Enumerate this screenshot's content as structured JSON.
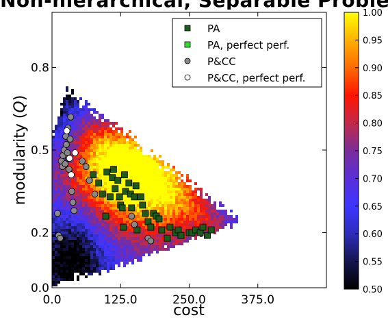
{
  "chart_data": {
    "type": "scatter",
    "title": "Non-hierarchical, Separable Problems",
    "xlabel": "cost",
    "ylabel": "modularity (Q)",
    "xlim": [
      0,
      500
    ],
    "ylim": [
      0,
      1.0
    ],
    "xticks": [
      "0.0",
      "125.0",
      "250.0",
      "375.0"
    ],
    "xtick_values": [
      0,
      125,
      250,
      375
    ],
    "yticks": [
      "0.0",
      "0.2",
      "0.5",
      "0.8"
    ],
    "ytick_values": [
      0.0,
      0.2,
      0.5,
      0.8
    ],
    "grid": false,
    "legend_position": "top-right",
    "colorbar": {
      "range": [
        0.5,
        1.0
      ],
      "ticks": [
        "0.50",
        "0.55",
        "0.60",
        "0.65",
        "0.70",
        "0.75",
        "0.80",
        "0.85",
        "0.90",
        "0.95",
        "1.00"
      ],
      "colors": [
        "#000000",
        "#15154d",
        "#2d2db8",
        "#3d35ff",
        "#5a2fd8",
        "#7a2d9a",
        "#c02a4a",
        "#ff1500",
        "#ff6a00",
        "#ffb000",
        "#ffff00"
      ]
    },
    "background_heatmap": "density of evolved networks over cost and modularity (perfect-performance fraction), values 0.50-1.00",
    "series": [
      {
        "name": "PA",
        "marker": "square",
        "color": "#1e5a1e",
        "points": [
          [
            75,
            0.41
          ],
          [
            85,
            0.38
          ],
          [
            92,
            0.34
          ],
          [
            98,
            0.26
          ],
          [
            100,
            0.42
          ],
          [
            106,
            0.33
          ],
          [
            110,
            0.4
          ],
          [
            112,
            0.43
          ],
          [
            115,
            0.36
          ],
          [
            120,
            0.39
          ],
          [
            123,
            0.33
          ],
          [
            125,
            0.3
          ],
          [
            128,
            0.29
          ],
          [
            130,
            0.22
          ],
          [
            132,
            0.41
          ],
          [
            134,
            0.35
          ],
          [
            140,
            0.38
          ],
          [
            143,
            0.34
          ],
          [
            145,
            0.29
          ],
          [
            150,
            0.33
          ],
          [
            153,
            0.37
          ],
          [
            155,
            0.21
          ],
          [
            162,
            0.33
          ],
          [
            165,
            0.3
          ],
          [
            170,
            0.27
          ],
          [
            175,
            0.24
          ],
          [
            180,
            0.22
          ],
          [
            185,
            0.27
          ],
          [
            190,
            0.26
          ],
          [
            195,
            0.25
          ],
          [
            200,
            0.21
          ],
          [
            210,
            0.18
          ],
          [
            215,
            0.22
          ],
          [
            225,
            0.2
          ],
          [
            230,
            0.21
          ],
          [
            235,
            0.19
          ],
          [
            250,
            0.2
          ],
          [
            255,
            0.2
          ],
          [
            262,
            0.21
          ],
          [
            270,
            0.2
          ],
          [
            275,
            0.22
          ],
          [
            283,
            0.19
          ],
          [
            290,
            0.21
          ]
        ]
      },
      {
        "name": "PA, perfect perf.",
        "marker": "square",
        "color": "#33dd33",
        "points": []
      },
      {
        "name": "P&CC",
        "marker": "circle",
        "color": "#888888",
        "points": [
          [
            10,
            0.27
          ],
          [
            12,
            0.19
          ],
          [
            15,
            0.18
          ],
          [
            17,
            0.46
          ],
          [
            19,
            0.44
          ],
          [
            20,
            0.48
          ],
          [
            22,
            0.5
          ],
          [
            24,
            0.45
          ],
          [
            25,
            0.55
          ],
          [
            26,
            0.52
          ],
          [
            28,
            0.49
          ],
          [
            29,
            0.58
          ],
          [
            30,
            0.47
          ],
          [
            31,
            0.43
          ],
          [
            33,
            0.54
          ],
          [
            34,
            0.62
          ],
          [
            36,
            0.35
          ],
          [
            38,
            0.31
          ],
          [
            40,
            0.28
          ],
          [
            55,
            0.46
          ],
          [
            62,
            0.44
          ],
          [
            68,
            0.39
          ],
          [
            78,
            0.34
          ],
          [
            145,
            0.26
          ],
          [
            150,
            0.23
          ],
          [
            175,
            0.18
          ],
          [
            180,
            0.17
          ]
        ]
      },
      {
        "name": "P&CC, perfect perf.",
        "marker": "circle",
        "color": "#ffffff",
        "points": [
          [
            27,
            0.57
          ],
          [
            32,
            0.47
          ],
          [
            35,
            0.41
          ],
          [
            42,
            0.49
          ]
        ]
      }
    ]
  }
}
